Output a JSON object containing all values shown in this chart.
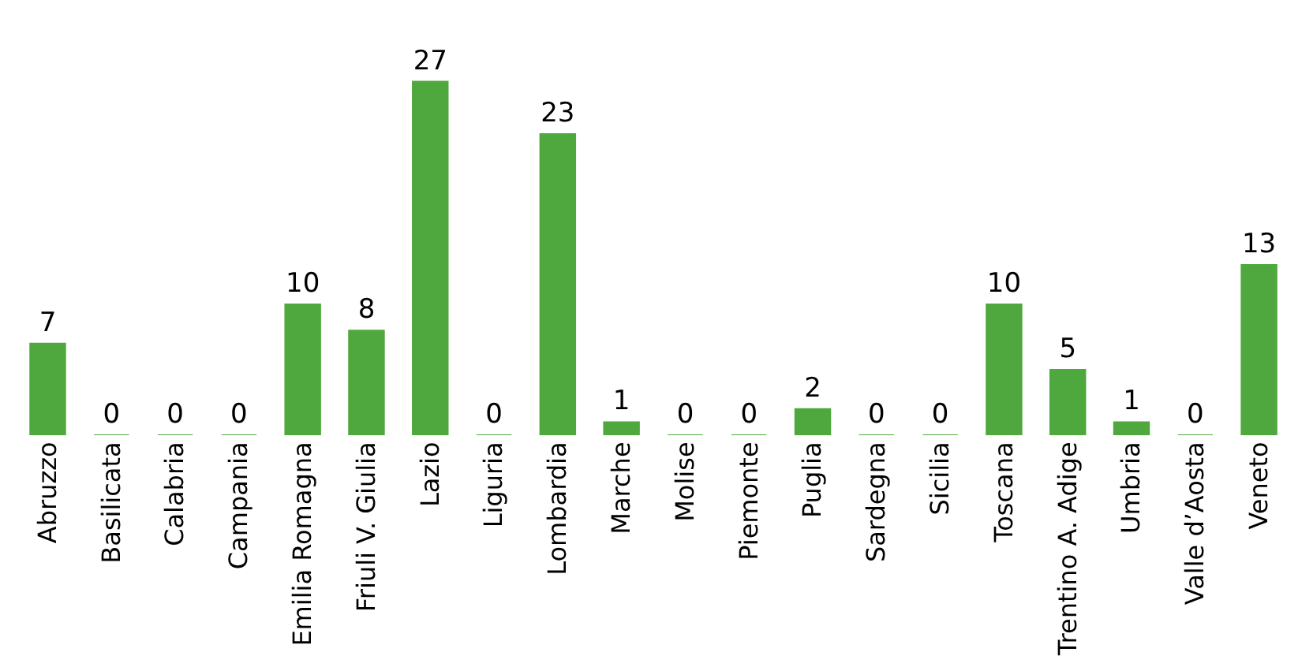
{
  "chart_data": {
    "type": "bar",
    "categories": [
      "Abruzzo",
      "Basilicata",
      "Calabria",
      "Campania",
      "Emilia Romagna",
      "Friuli V. Giulia",
      "Lazio",
      "Liguria",
      "Lombardia",
      "Marche",
      "Molise",
      "Piemonte",
      "Puglia",
      "Sardegna",
      "Sicilia",
      "Toscana",
      "Trentino A. Adige",
      "Umbria",
      "Valle d’Aosta",
      "Veneto"
    ],
    "values": [
      7,
      0,
      0,
      0,
      10,
      8,
      27,
      0,
      23,
      1,
      0,
      0,
      2,
      0,
      0,
      10,
      5,
      1,
      0,
      13
    ],
    "color": "#4fa83d",
    "data_labels": true,
    "grid": false,
    "legend": false
  }
}
